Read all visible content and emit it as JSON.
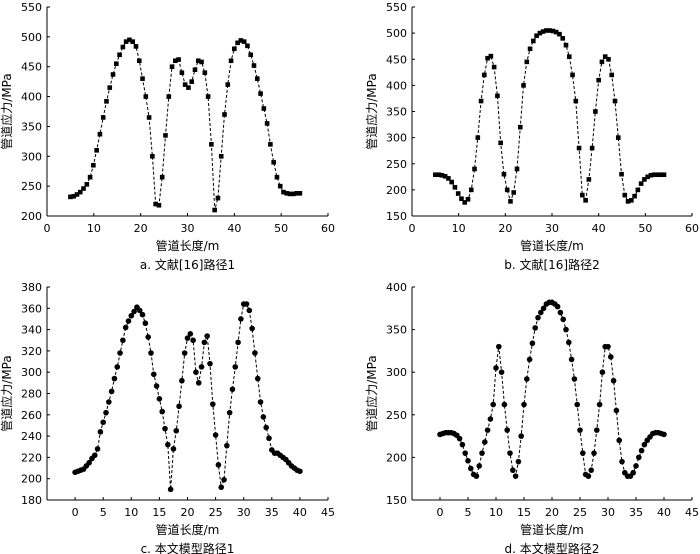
{
  "chart_data": [
    {
      "id": "a",
      "type": "line",
      "marker": "square",
      "caption": "a. 文献[16]路径1",
      "xlabel": "管道长度/m",
      "ylabel": "管道应力/MPa",
      "xlim": [
        0,
        60
      ],
      "ylim": [
        200,
        550
      ],
      "xticks": [
        0,
        10,
        20,
        30,
        40,
        50,
        60
      ],
      "yticks": [
        200,
        250,
        300,
        350,
        400,
        450,
        500,
        550
      ],
      "series": [
        {
          "name": "路径1",
          "x": [
            5,
            5.7,
            6.4,
            7.1,
            7.8,
            8.5,
            9.2,
            9.9,
            10.6,
            11.3,
            12.0,
            12.7,
            13.4,
            14.1,
            14.8,
            15.5,
            16.2,
            16.9,
            17.6,
            18.3,
            19.0,
            19.7,
            20.4,
            21.1,
            21.8,
            22.5,
            23.2,
            23.9,
            24.6,
            25.3,
            26.0,
            26.7,
            27.4,
            28.1,
            28.8,
            29.5,
            30.2,
            30.9,
            31.6,
            32.3,
            33.0,
            33.7,
            34.4,
            35.1,
            35.8,
            36.5,
            37.2,
            37.9,
            38.6,
            39.3,
            40.0,
            40.7,
            41.4,
            42.1,
            42.8,
            43.5,
            44.2,
            44.9,
            45.6,
            46.3,
            47.0,
            47.7,
            48.4,
            49.1,
            49.8,
            50.5,
            51.2,
            51.9,
            52.6,
            53.3,
            54.0
          ],
          "values": [
            232,
            233,
            236,
            240,
            246,
            253,
            265,
            285,
            310,
            337,
            365,
            392,
            415,
            437,
            455,
            470,
            483,
            492,
            495,
            492,
            484,
            460,
            430,
            400,
            365,
            300,
            220,
            218,
            265,
            335,
            400,
            450,
            460,
            462,
            440,
            420,
            415,
            425,
            445,
            460,
            458,
            440,
            400,
            320,
            210,
            230,
            300,
            370,
            420,
            460,
            480,
            490,
            494,
            492,
            485,
            470,
            452,
            430,
            405,
            380,
            355,
            320,
            290,
            265,
            250,
            240,
            238,
            237,
            237,
            238,
            238
          ]
        }
      ]
    },
    {
      "id": "b",
      "type": "line",
      "marker": "square",
      "caption": "b. 文献[16]路径2",
      "xlabel": "管道长度/m",
      "ylabel": "管道应力/MPa",
      "xlim": [
        0,
        60
      ],
      "ylim": [
        150,
        550
      ],
      "xticks": [
        0,
        10,
        20,
        30,
        40,
        50,
        60
      ],
      "yticks": [
        150,
        200,
        250,
        300,
        350,
        400,
        450,
        500,
        550
      ],
      "series": [
        {
          "name": "路径2",
          "x": [
            5,
            5.7,
            6.4,
            7.1,
            7.8,
            8.5,
            9.2,
            9.9,
            10.6,
            11.3,
            12.0,
            12.7,
            13.4,
            14.1,
            14.8,
            15.5,
            16.2,
            16.9,
            17.6,
            18.3,
            19.0,
            19.7,
            20.4,
            21.1,
            21.8,
            22.5,
            23.2,
            23.9,
            24.6,
            25.3,
            26.0,
            26.7,
            27.4,
            28.1,
            28.8,
            29.5,
            30.2,
            30.9,
            31.6,
            32.3,
            33.0,
            33.7,
            34.4,
            35.1,
            35.8,
            36.5,
            37.2,
            37.9,
            38.6,
            39.3,
            40.0,
            40.7,
            41.4,
            42.1,
            42.8,
            43.5,
            44.2,
            44.9,
            45.6,
            46.3,
            47.0,
            47.7,
            48.4,
            49.1,
            49.8,
            50.5,
            51.2,
            51.9,
            52.6,
            53.3,
            54.0
          ],
          "values": [
            229,
            229,
            228,
            226,
            222,
            215,
            205,
            193,
            183,
            176,
            182,
            200,
            240,
            300,
            370,
            420,
            452,
            456,
            435,
            380,
            290,
            230,
            200,
            178,
            195,
            240,
            320,
            400,
            445,
            470,
            485,
            495,
            500,
            503,
            505,
            505,
            504,
            502,
            498,
            490,
            477,
            455,
            420,
            370,
            280,
            190,
            180,
            220,
            280,
            350,
            410,
            445,
            455,
            450,
            420,
            370,
            300,
            230,
            190,
            178,
            180,
            188,
            200,
            212,
            220,
            225,
            228,
            229,
            229,
            229,
            229
          ]
        }
      ]
    },
    {
      "id": "c",
      "type": "line",
      "marker": "circle",
      "caption": "c. 本文模型路径1",
      "xlabel": "管道长度/m",
      "ylabel": "管道应力/MPa",
      "xlim": [
        -5,
        45
      ],
      "ylim": [
        180,
        380
      ],
      "xticks": [
        0,
        5,
        10,
        15,
        20,
        25,
        30,
        35,
        40,
        45
      ],
      "yticks": [
        180,
        200,
        220,
        240,
        260,
        280,
        300,
        320,
        340,
        360,
        380
      ],
      "series": [
        {
          "name": "路径1",
          "x": [
            0,
            0.5,
            1,
            1.5,
            2,
            2.5,
            3,
            3.5,
            4,
            4.5,
            5,
            5.5,
            6,
            6.5,
            7,
            7.5,
            8,
            8.5,
            9,
            9.5,
            10,
            10.5,
            11,
            11.5,
            12,
            12.5,
            13,
            13.5,
            14,
            14.5,
            15,
            15.5,
            16,
            16.5,
            17,
            17.5,
            18,
            18.5,
            19,
            19.5,
            20,
            20.5,
            21,
            21.5,
            22,
            22.5,
            23,
            23.5,
            24,
            24.5,
            25,
            25.5,
            26,
            26.5,
            27,
            27.5,
            28,
            28.5,
            29,
            29.5,
            30,
            30.5,
            31,
            31.5,
            32,
            32.5,
            33,
            33.5,
            34,
            34.5,
            35,
            35.5,
            36,
            36.5,
            37,
            37.5,
            38,
            38.5,
            39,
            39.5,
            40
          ],
          "values": [
            206,
            207,
            208,
            209,
            212,
            215,
            219,
            222,
            228,
            244,
            253,
            262,
            272,
            282,
            294,
            305,
            318,
            330,
            342,
            348,
            353,
            357,
            361,
            358,
            354,
            346,
            333,
            318,
            298,
            287,
            275,
            263,
            247,
            232,
            190,
            228,
            245,
            268,
            292,
            318,
            332,
            336,
            330,
            300,
            290,
            305,
            328,
            334,
            308,
            270,
            241,
            213,
            192,
            199,
            231,
            262,
            284,
            305,
            328,
            350,
            364,
            364,
            358,
            341,
            318,
            294,
            272,
            258,
            248,
            238,
            227,
            224,
            224,
            222,
            220,
            218,
            215,
            212,
            210,
            208,
            207
          ]
        }
      ]
    },
    {
      "id": "d",
      "type": "line",
      "marker": "circle",
      "caption": "d. 本文模型路径2",
      "xlabel": "管道长度/m",
      "ylabel": "管道应力/MPa",
      "xlim": [
        -5,
        45
      ],
      "ylim": [
        150,
        400
      ],
      "xticks": [
        0,
        5,
        10,
        15,
        20,
        25,
        30,
        35,
        40,
        45
      ],
      "yticks": [
        150,
        200,
        250,
        300,
        350,
        400
      ],
      "series": [
        {
          "name": "路径2",
          "x": [
            0,
            0.5,
            1,
            1.5,
            2,
            2.5,
            3,
            3.5,
            4,
            4.5,
            5,
            5.5,
            6,
            6.5,
            7,
            7.5,
            8,
            8.5,
            9,
            9.5,
            10,
            10.5,
            11,
            11.5,
            12,
            12.5,
            13,
            13.5,
            14,
            14.5,
            15,
            15.5,
            16,
            16.5,
            17,
            17.5,
            18,
            18.5,
            19,
            19.5,
            20,
            20.5,
            21,
            21.5,
            22,
            22.5,
            23,
            23.5,
            24,
            24.5,
            25,
            25.5,
            26,
            26.5,
            27,
            27.5,
            28,
            28.5,
            29,
            29.5,
            30,
            30.5,
            31,
            31.5,
            32,
            32.5,
            33,
            33.5,
            34,
            34.5,
            35,
            35.5,
            36,
            36.5,
            37,
            37.5,
            38,
            38.5,
            39,
            39.5,
            40
          ],
          "values": [
            227,
            228,
            229,
            229,
            229,
            228,
            226,
            222,
            215,
            205,
            196,
            187,
            180,
            178,
            190,
            205,
            218,
            232,
            245,
            262,
            305,
            330,
            300,
            262,
            232,
            205,
            185,
            178,
            195,
            225,
            262,
            292,
            315,
            334,
            352,
            364,
            370,
            375,
            380,
            382,
            382,
            380,
            377,
            370,
            362,
            350,
            335,
            315,
            292,
            262,
            232,
            205,
            180,
            178,
            185,
            205,
            232,
            262,
            300,
            330,
            330,
            318,
            290,
            255,
            220,
            195,
            182,
            178,
            178,
            182,
            190,
            200,
            208,
            215,
            220,
            224,
            228,
            229,
            229,
            228,
            227
          ]
        }
      ]
    }
  ]
}
